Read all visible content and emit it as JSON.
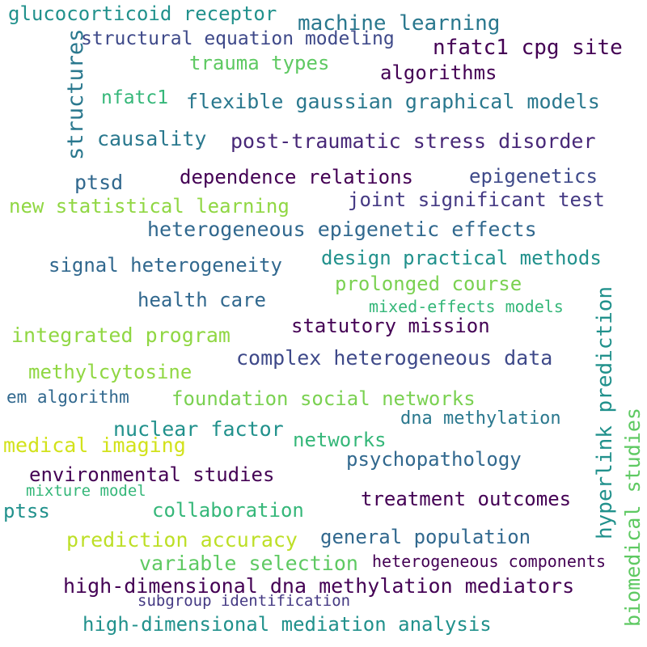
{
  "words": [
    {
      "text": "glucocorticoid receptor",
      "color": "#21918c"
    },
    {
      "text": "machine learning",
      "color": "#2a788e"
    },
    {
      "text": "structural equation modeling",
      "color": "#3e4989"
    },
    {
      "text": "nfatc1 cpg site",
      "color": "#440154"
    },
    {
      "text": "structures",
      "color": "#2a788e",
      "orientation": "vertical"
    },
    {
      "text": "trauma types",
      "color": "#5ec962"
    },
    {
      "text": "algorithms",
      "color": "#440154"
    },
    {
      "text": "nfatc1",
      "color": "#35b779"
    },
    {
      "text": "flexible gaussian graphical models",
      "color": "#2a788e"
    },
    {
      "text": "causality",
      "color": "#2a788e"
    },
    {
      "text": "post-traumatic stress disorder",
      "color": "#482878"
    },
    {
      "text": "ptsd",
      "color": "#31688e"
    },
    {
      "text": "dependence relations",
      "color": "#440154"
    },
    {
      "text": "epigenetics",
      "color": "#3e4989"
    },
    {
      "text": "new statistical learning",
      "color": "#90d743"
    },
    {
      "text": "joint significant test",
      "color": "#443983"
    },
    {
      "text": "heterogeneous epigenetic effects",
      "color": "#31688e"
    },
    {
      "text": "signal heterogeneity",
      "color": "#31688e"
    },
    {
      "text": "design practical methods",
      "color": "#21918c"
    },
    {
      "text": "prolonged course",
      "color": "#7ad151"
    },
    {
      "text": "health care",
      "color": "#31688e"
    },
    {
      "text": "mixed-effects models",
      "color": "#35b779"
    },
    {
      "text": "hyperlink prediction",
      "color": "#21918c",
      "orientation": "vertical"
    },
    {
      "text": "biomedical studies",
      "color": "#5ec962",
      "orientation": "vertical"
    },
    {
      "text": "integrated program",
      "color": "#90d743"
    },
    {
      "text": "statutory mission",
      "color": "#440154"
    },
    {
      "text": "complex heterogeneous data",
      "color": "#3e4989"
    },
    {
      "text": "methylcytosine",
      "color": "#90d743"
    },
    {
      "text": "em algorithm",
      "color": "#31688e"
    },
    {
      "text": "foundation social networks",
      "color": "#7ad151"
    },
    {
      "text": "dna methylation",
      "color": "#2a788e"
    },
    {
      "text": "nuclear factor",
      "color": "#21918c"
    },
    {
      "text": "networks",
      "color": "#35b779"
    },
    {
      "text": "medical imaging",
      "color": "#d2e21b"
    },
    {
      "text": "psychopathology",
      "color": "#31688e"
    },
    {
      "text": "environmental studies",
      "color": "#440154"
    },
    {
      "text": "mixture model",
      "color": "#35b779"
    },
    {
      "text": "ptss",
      "color": "#21918c"
    },
    {
      "text": "collaboration",
      "color": "#35b779"
    },
    {
      "text": "treatment outcomes",
      "color": "#440154"
    },
    {
      "text": "prediction accuracy",
      "color": "#bddf26"
    },
    {
      "text": "general population",
      "color": "#31688e"
    },
    {
      "text": "variable selection",
      "color": "#5ec962"
    },
    {
      "text": "heterogeneous components",
      "color": "#440154"
    },
    {
      "text": "high-dimensional dna methylation mediators",
      "color": "#440154"
    },
    {
      "text": "subgroup identification",
      "color": "#443983"
    },
    {
      "text": "high-dimensional mediation analysis",
      "color": "#21918c"
    }
  ]
}
